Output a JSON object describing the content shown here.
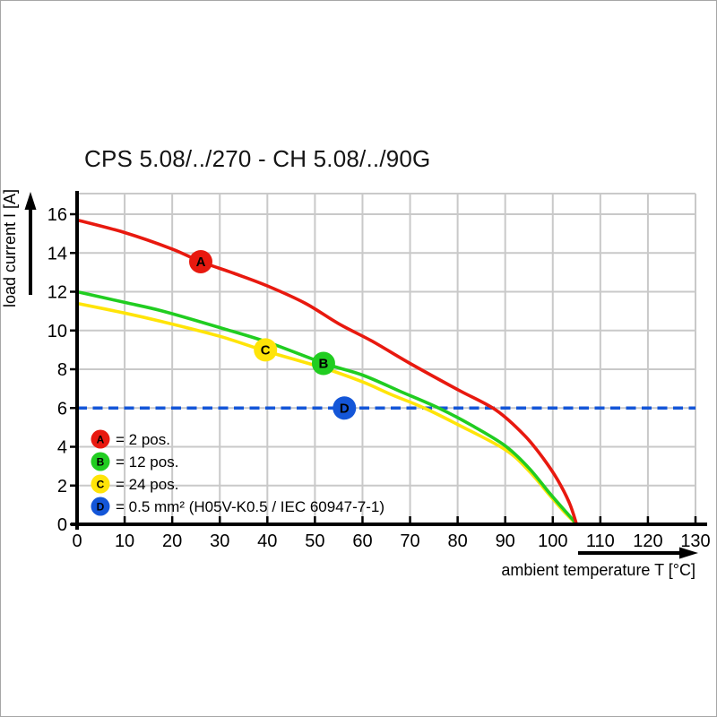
{
  "chart_data": {
    "type": "line",
    "title": "CPS 5.08/../270 - CH 5.08/../90G",
    "xlabel": "ambient temperature T [°C]",
    "ylabel": "load current I [A]",
    "xlim": [
      0,
      130
    ],
    "ylim": [
      0,
      16
    ],
    "x_ticks": [
      0,
      10,
      20,
      30,
      40,
      50,
      60,
      70,
      80,
      90,
      100,
      110,
      120,
      130
    ],
    "y_ticks": [
      0,
      2,
      4,
      6,
      8,
      10,
      12,
      14,
      16
    ],
    "grid": true,
    "grid_color": "#c9c9c9",
    "axis_color": "#000000",
    "legend_position": "lower-left inside plot",
    "series": [
      {
        "id": "A",
        "label": "2 pos.",
        "color": "#e8190f",
        "style": "solid",
        "points": [
          [
            0,
            15.7
          ],
          [
            10,
            15.05
          ],
          [
            20,
            14.2
          ],
          [
            26,
            13.55
          ],
          [
            33,
            12.95
          ],
          [
            40,
            12.3
          ],
          [
            48,
            11.4
          ],
          [
            55,
            10.35
          ],
          [
            62,
            9.45
          ],
          [
            70,
            8.3
          ],
          [
            80,
            6.95
          ],
          [
            88,
            5.9
          ],
          [
            94,
            4.6
          ],
          [
            98,
            3.4
          ],
          [
            101,
            2.3
          ],
          [
            103.5,
            1.1
          ],
          [
            105,
            0
          ]
        ],
        "marker": {
          "t": 26,
          "i": 13.55,
          "letter": "A"
        }
      },
      {
        "id": "B",
        "label": "12 pos.",
        "color": "#21cd21",
        "style": "solid",
        "points": [
          [
            0,
            12.0
          ],
          [
            10,
            11.45
          ],
          [
            18,
            11.0
          ],
          [
            30,
            10.15
          ],
          [
            40,
            9.4
          ],
          [
            52,
            8.3
          ],
          [
            60,
            7.7
          ],
          [
            68,
            6.85
          ],
          [
            76,
            6.0
          ],
          [
            83,
            5.1
          ],
          [
            90,
            4.05
          ],
          [
            95,
            2.9
          ],
          [
            99,
            1.7
          ],
          [
            102,
            0.85
          ],
          [
            104,
            0.3
          ],
          [
            105,
            0
          ]
        ],
        "marker": {
          "t": 51.8,
          "i": 8.3,
          "letter": "B"
        }
      },
      {
        "id": "C",
        "label": "24 pos.",
        "color": "#ffe408",
        "style": "solid",
        "points": [
          [
            0,
            11.4
          ],
          [
            10,
            10.9
          ],
          [
            18,
            10.45
          ],
          [
            30,
            9.7
          ],
          [
            39.5,
            8.95
          ],
          [
            52,
            8.05
          ],
          [
            60,
            7.35
          ],
          [
            66,
            6.7
          ],
          [
            73,
            6.0
          ],
          [
            80,
            5.15
          ],
          [
            90,
            3.85
          ],
          [
            95,
            2.75
          ],
          [
            99,
            1.6
          ],
          [
            102,
            0.75
          ],
          [
            104,
            0.25
          ],
          [
            105,
            0
          ]
        ],
        "marker": {
          "t": 39.6,
          "i": 9.0,
          "letter": "C"
        }
      },
      {
        "id": "D",
        "label": "0.5 mm² (H05V-K0.5 / IEC 60947-7-1)",
        "color": "#1456d8",
        "style": "dashed-horizontal",
        "y": 6,
        "marker": {
          "t": 56.2,
          "i": 6,
          "letter": "D"
        }
      }
    ],
    "legend": [
      {
        "letter": "A",
        "color": "#e8190f",
        "text": "= 2 pos."
      },
      {
        "letter": "B",
        "color": "#21cd21",
        "text": "= 12 pos."
      },
      {
        "letter": "C",
        "color": "#ffe408",
        "text": "= 24 pos."
      },
      {
        "letter": "D",
        "color": "#1456d8",
        "text": "= 0.5 mm² (H05V-K0.5 / IEC 60947-7-1)"
      }
    ]
  }
}
